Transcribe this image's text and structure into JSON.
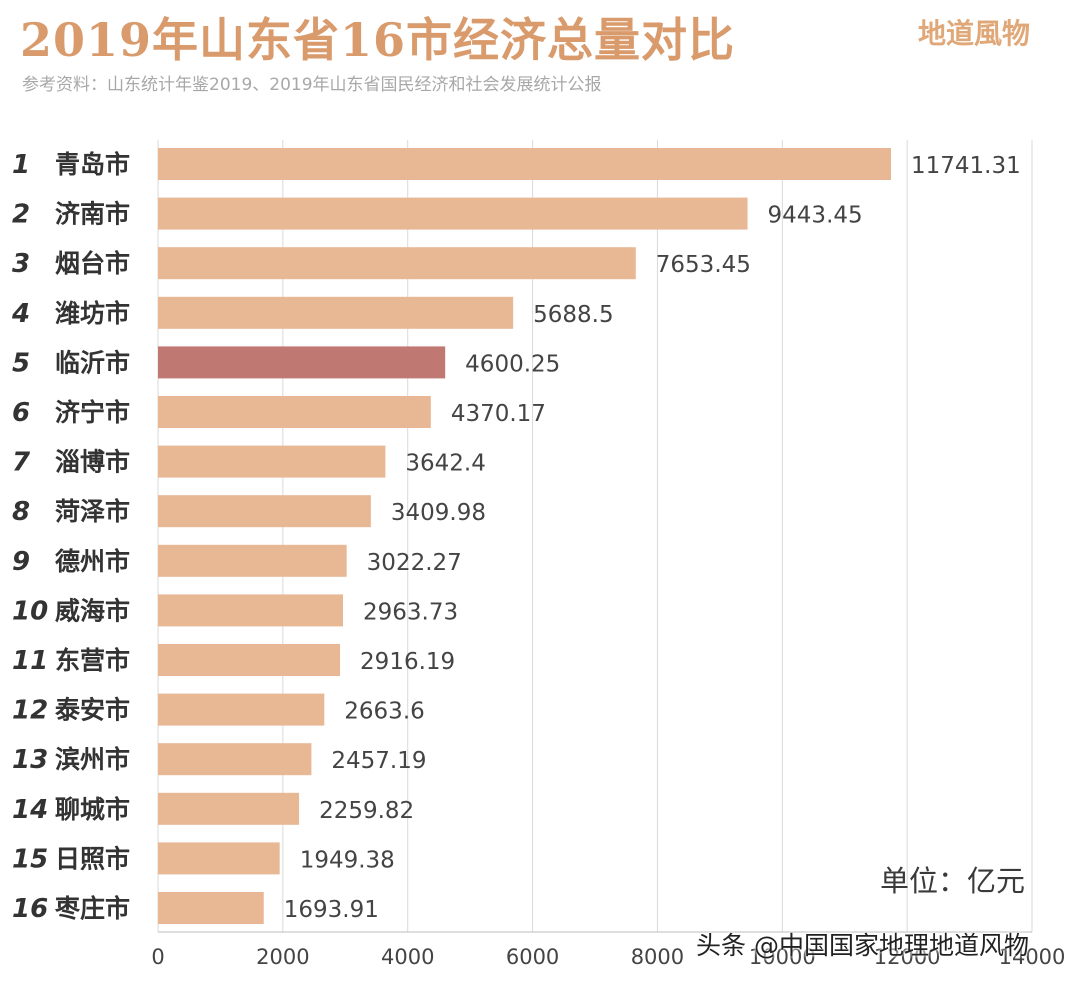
{
  "header": {
    "title": "2019年山东省16市经济总量对比",
    "brand": "地道風物",
    "source": "参考资料：山东统计年鉴2019、2019年山东省国民经济和社会发展统计公报"
  },
  "unit_label": "单位：亿元",
  "watermark": "头条 @中国国家地理地道风物",
  "colors": {
    "bar": "#e8b895",
    "highlight_bar": "#c07872",
    "highlight_text": "#c07872",
    "title": "#d99a6c"
  },
  "chart_data": {
    "type": "bar",
    "orientation": "horizontal",
    "title": "2019年山东省16市经济总量对比",
    "xlabel": "",
    "ylabel": "",
    "unit": "亿元",
    "xlim": [
      0,
      14000
    ],
    "xticks": [
      0,
      2000,
      4000,
      6000,
      8000,
      10000,
      12000,
      14000
    ],
    "ranks": [
      "1",
      "2",
      "3",
      "4",
      "5",
      "6",
      "7",
      "8",
      "9",
      "10",
      "11",
      "12",
      "13",
      "14",
      "15",
      "16"
    ],
    "categories": [
      "青岛市",
      "济南市",
      "烟台市",
      "潍坊市",
      "临沂市",
      "济宁市",
      "淄博市",
      "菏泽市",
      "德州市",
      "威海市",
      "东营市",
      "泰安市",
      "滨州市",
      "聊城市",
      "日照市",
      "枣庄市"
    ],
    "values": [
      11741.31,
      9443.45,
      7653.45,
      5688.5,
      4600.25,
      4370.17,
      3642.4,
      3409.98,
      3022.27,
      2963.73,
      2916.19,
      2663.6,
      2457.19,
      2259.82,
      1949.38,
      1693.91
    ],
    "value_labels": [
      "11741.31",
      "9443.45",
      "7653.45",
      "5688.5",
      "4600.25",
      "4370.17",
      "3642.4",
      "3409.98",
      "3022.27",
      "2963.73",
      "2916.19",
      "2663.6",
      "2457.19",
      "2259.82",
      "1949.38",
      "1693.91"
    ],
    "highlight_index": 4,
    "grid": true
  }
}
